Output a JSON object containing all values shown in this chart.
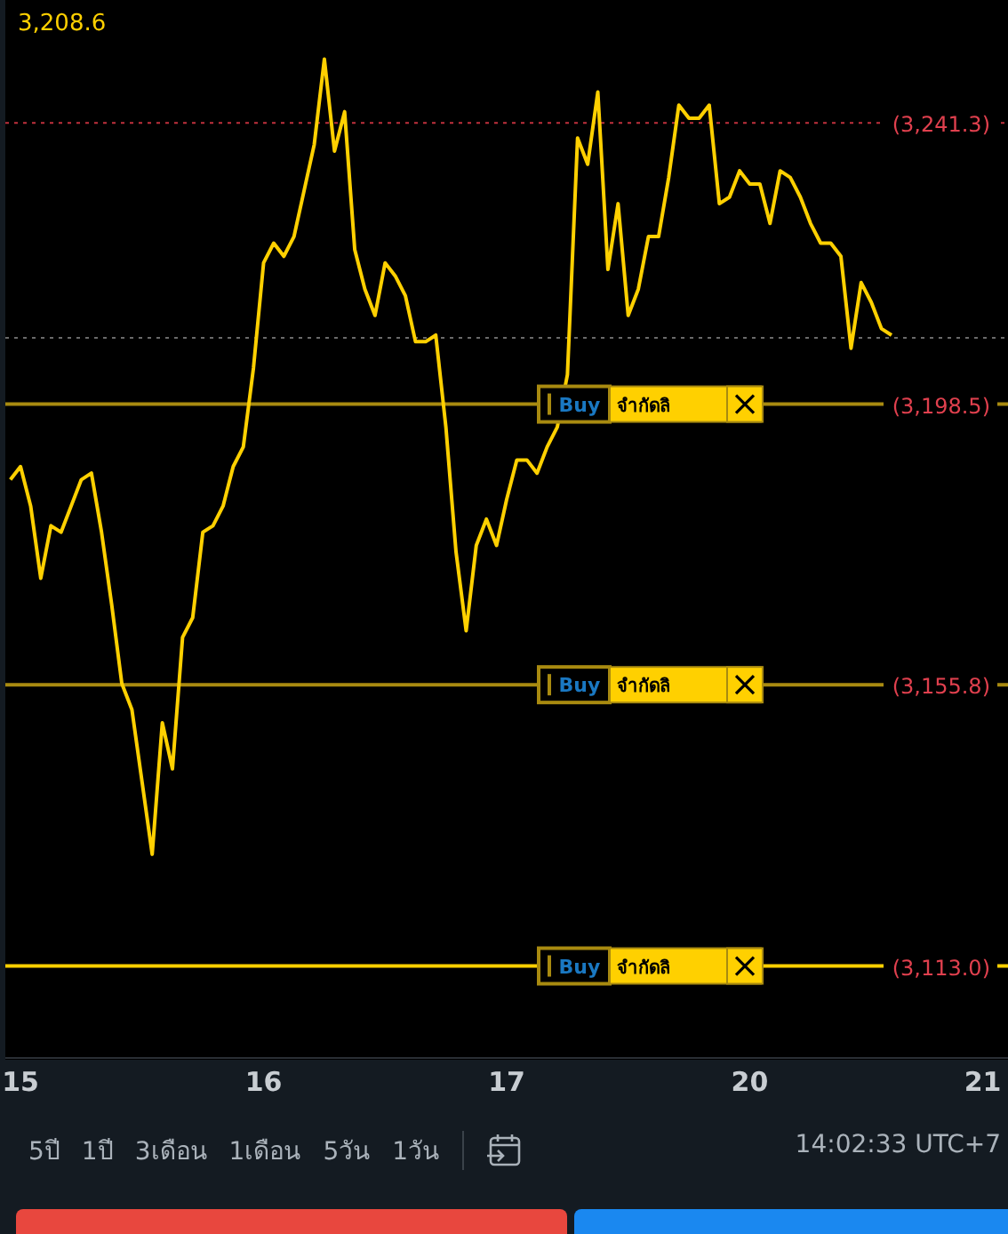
{
  "chart_data": {
    "type": "line",
    "categories": [
      null,
      "15",
      null,
      null,
      null,
      null,
      null,
      null,
      null,
      null,
      null,
      null,
      null,
      null,
      null,
      null,
      null,
      null,
      null,
      null,
      null,
      null,
      null,
      null,
      null,
      "16",
      null,
      null,
      null,
      null,
      null,
      null,
      null,
      null,
      null,
      null,
      null,
      null,
      null,
      null,
      null,
      null,
      null,
      null,
      null,
      null,
      null,
      null,
      null,
      "17",
      null,
      null,
      null,
      null,
      null,
      null,
      null,
      null,
      null,
      null,
      null,
      null,
      null,
      null,
      null,
      null,
      null,
      null,
      null,
      null,
      null,
      null,
      null,
      "20",
      null,
      null,
      null,
      null,
      null,
      null,
      null,
      null,
      null,
      null,
      null,
      null,
      null,
      null,
      null,
      null,
      null,
      null,
      null,
      null,
      null,
      null,
      "21",
      null,
      null,
      null
    ],
    "series": [
      {
        "color": "#ffd000",
        "values": [
          3187,
          3189,
          3183,
          3172,
          3180,
          3179,
          3183,
          3187,
          3188,
          3179,
          3168,
          3156,
          3152,
          3141,
          3130,
          3150,
          3143,
          3163,
          3166,
          3179,
          3180,
          3183,
          3189,
          3192,
          3204,
          3220,
          3223,
          3221,
          3224,
          3231,
          3238,
          3251,
          3237,
          3243,
          3222,
          3216,
          3212,
          3220,
          3218,
          3215,
          3208,
          3208,
          3209,
          3195,
          3176,
          3164,
          3177,
          3181,
          3177,
          3184,
          3190,
          3190,
          3188,
          3192,
          3195,
          3203,
          3239,
          3235,
          3246,
          3219,
          3229,
          3212,
          3216,
          3224,
          3224,
          3233,
          3244,
          3242,
          3242,
          3244,
          3229,
          3230,
          3234,
          3232,
          3232,
          3226,
          3234,
          3233,
          3230,
          3226,
          3223,
          3223,
          3221,
          3207,
          3217,
          3214,
          3210,
          3209,
          null,
          null,
          null,
          null,
          null,
          null,
          null,
          null,
          null,
          null,
          null,
          null
        ]
      }
    ],
    "ylim": [
      3099,
      3260
    ],
    "tick_labels": "x",
    "grid": false,
    "legend": false,
    "marker": "none",
    "line_style": "solid",
    "ref_lines": [
      {
        "axis": "y",
        "value": 3241.3,
        "label": "(3,241.3)",
        "color": "#c0303c",
        "line_style": "dotted"
      },
      {
        "axis": "y",
        "value": 3208.6,
        "color": "#6a6a6a",
        "line_style": "dotted"
      },
      {
        "axis": "y",
        "value": 3198.5,
        "label": "(3,198.5)",
        "color": "#a88a10",
        "line_style": "solid"
      },
      {
        "axis": "y",
        "value": 3155.8,
        "label": "(3,155.8)",
        "color": "#a88a10",
        "line_style": "solid"
      },
      {
        "axis": "y",
        "value": 3113.0,
        "label": "(3,113.0)",
        "color": "#ffd000",
        "line_style": "solid"
      }
    ],
    "annotations": [
      "3,208.6",
      {
        "text": "Buy",
        "y": 3198.5
      },
      {
        "text": "จำกัดลิ",
        "y": 3198.5
      },
      {
        "text": "Buy",
        "y": 3155.8
      },
      {
        "text": "จำกัดลิ",
        "y": 3155.8
      },
      {
        "text": "Buy",
        "y": 3113.0
      },
      {
        "text": "จำกัดลิ",
        "y": 3113.0
      },
      "5ปี",
      "1ปี",
      "3เดือน",
      "1เดือน",
      "5วัน",
      "1วัน",
      "14:02:33 UTC+7"
    ]
  }
}
